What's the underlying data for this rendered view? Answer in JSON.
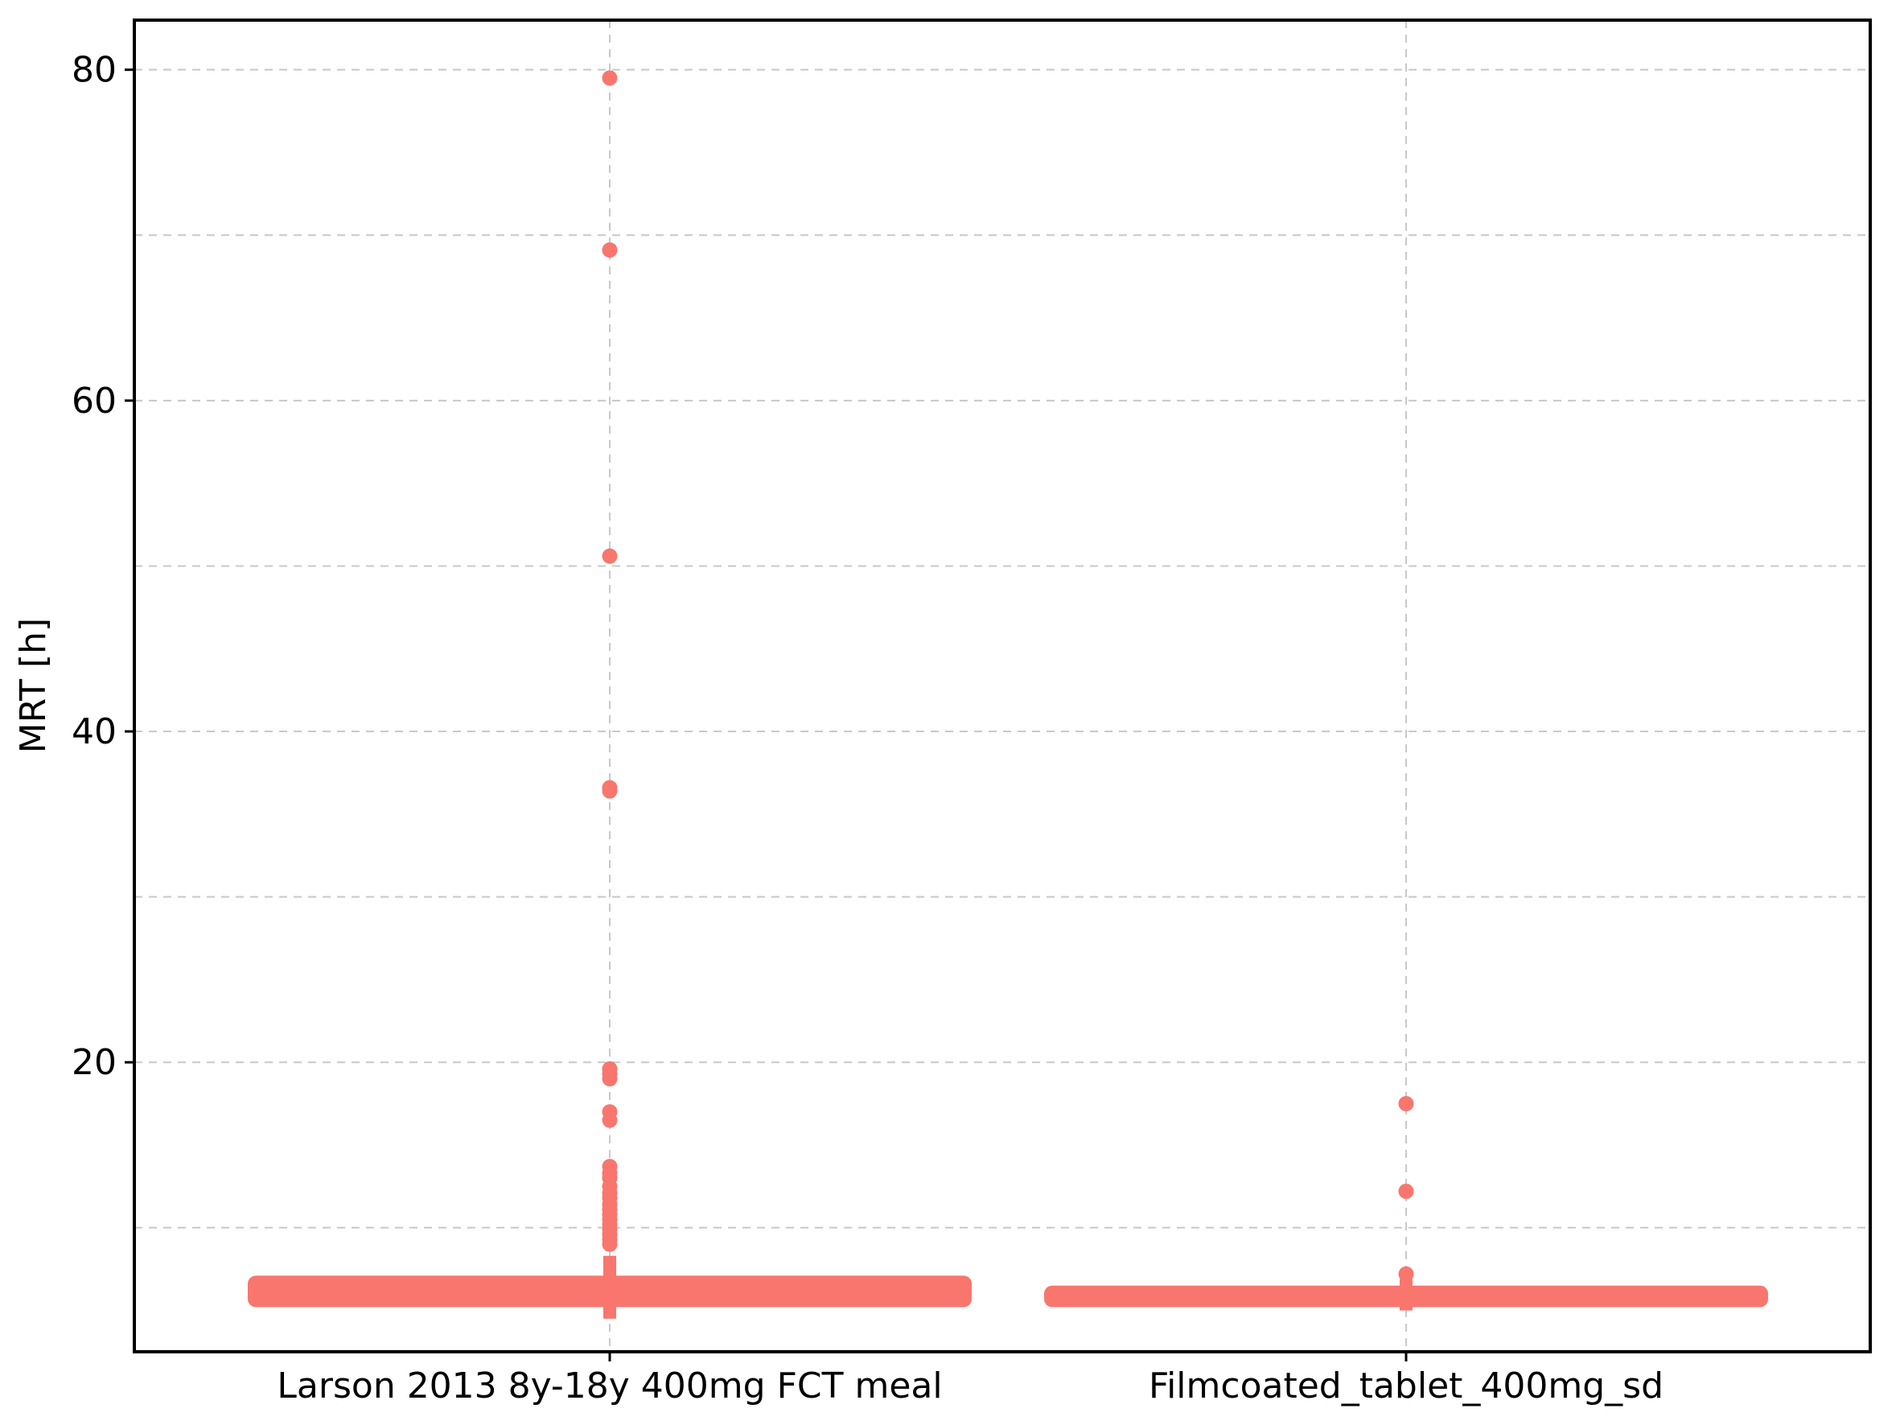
{
  "chart_data": {
    "type": "box",
    "xlabel": "",
    "ylabel": "MRT [h]",
    "ylim": [
      2.5,
      83
    ],
    "categories": [
      "Larson 2013 8y-18y 400mg FCT meal",
      "Filmcoated_tablet_400mg_sd"
    ],
    "y_ticks": [
      20,
      40,
      60,
      80
    ],
    "y_minor_grid": [
      10,
      30,
      50,
      70
    ],
    "grid": true,
    "color": "#F8766D",
    "boxes": [
      {
        "category": "Larson 2013 8y-18y 400mg FCT meal",
        "box_low": 5.2,
        "box_high": 7.1,
        "whisker_low": 4.5,
        "whisker_high": 8.3,
        "outliers": [
          79.5,
          69.1,
          50.6,
          36.6,
          36.4,
          19.6,
          19.3,
          19.0,
          17.0,
          16.5,
          13.7,
          13.3,
          13.0,
          12.5,
          12.1,
          11.8,
          11.4,
          11.1,
          10.8,
          10.5,
          10.2,
          9.9,
          9.6,
          9.3,
          9.0
        ]
      },
      {
        "category": "Filmcoated_tablet_400mg_sd",
        "box_low": 5.2,
        "box_high": 6.5,
        "whisker_low": 5.0,
        "whisker_high": 6.9,
        "outliers": [
          17.5,
          12.2,
          7.2
        ]
      }
    ]
  }
}
